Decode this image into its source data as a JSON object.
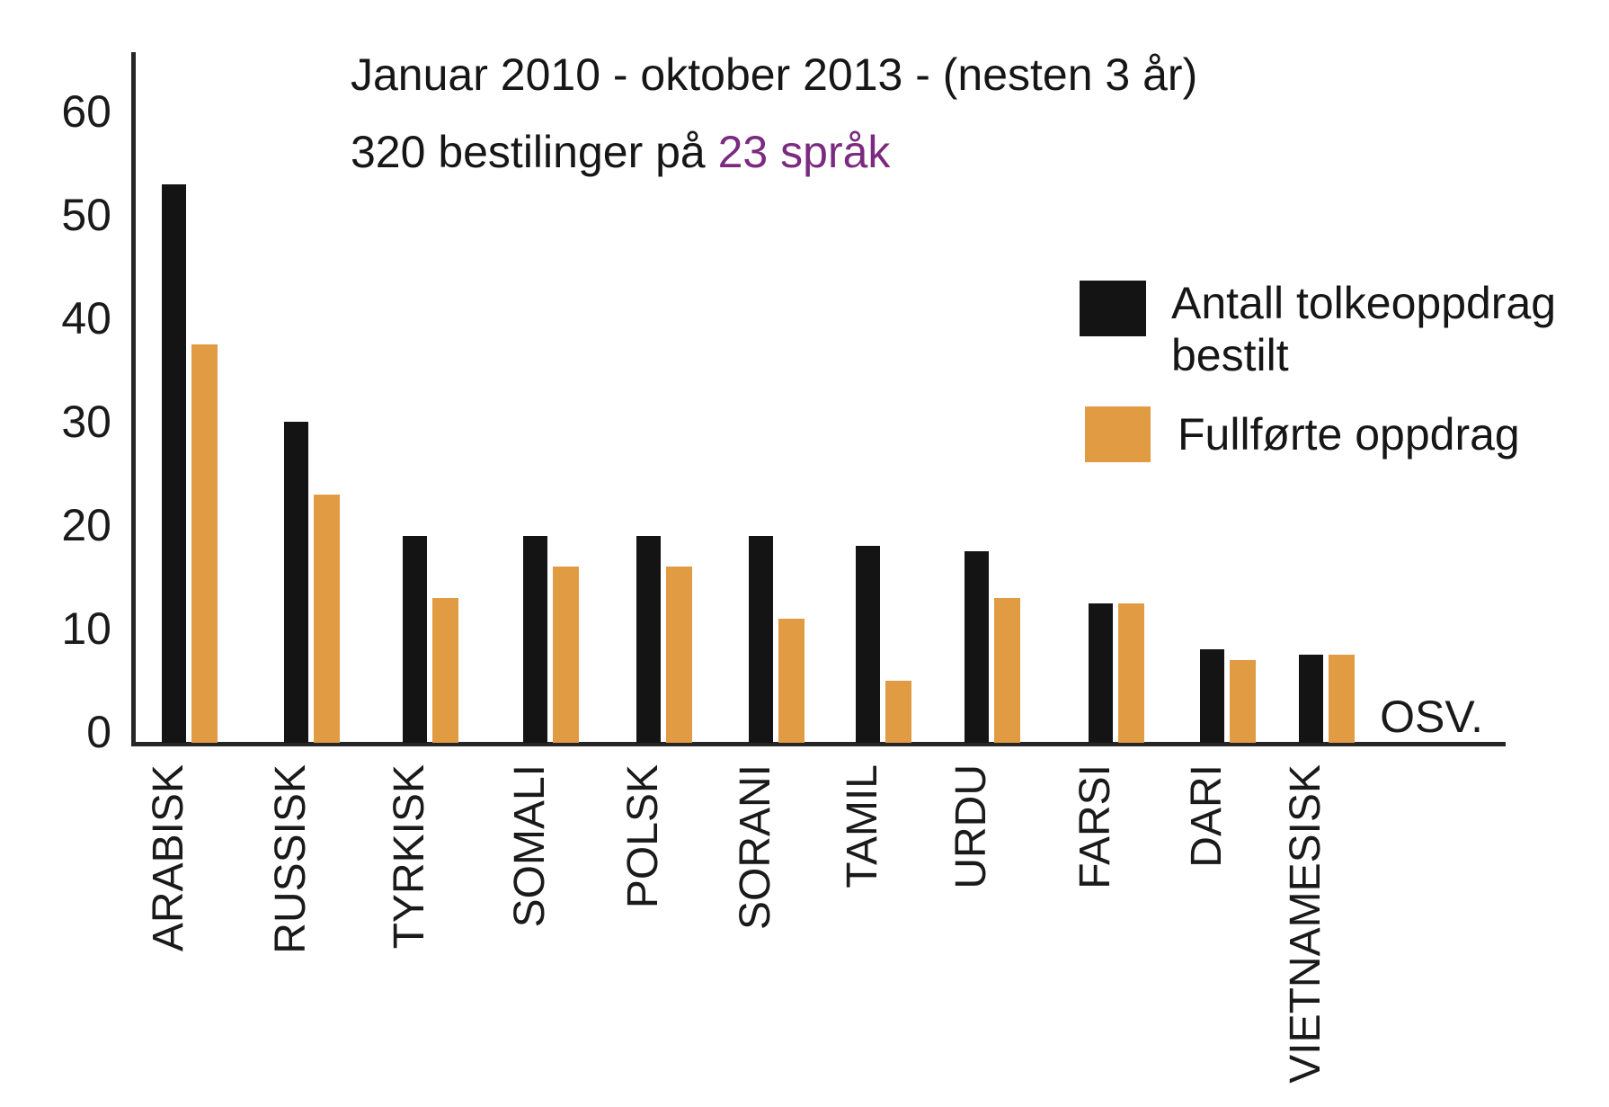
{
  "chart_data": {
    "type": "bar",
    "title_line1": "Januar 2010 - oktober 2013 - (nesten 3 år)",
    "title_line2_prefix": "320 bestilinger på ",
    "title_line2_highlight": "23 språk",
    "categories": [
      "ARABISK",
      "RUSSISK",
      "TYRKISK",
      "SOMALI",
      "POLSK",
      "SORANI",
      "TAMIL",
      "URDU",
      "FARSI",
      "DARI",
      "VIETNAMESISK"
    ],
    "series": [
      {
        "name": "Antall tolkeoppdrag bestilt",
        "color": "#141414",
        "values": [
          54,
          31,
          20,
          20,
          20,
          20,
          19,
          18.5,
          13.5,
          9,
          8.5
        ]
      },
      {
        "name": "Fullførte oppdrag",
        "color": "#e09b43",
        "values": [
          38.5,
          24,
          14,
          17,
          17,
          12,
          6,
          14,
          13.5,
          8,
          8.5
        ]
      }
    ],
    "y_ticks": [
      60,
      50,
      40,
      30,
      20,
      10,
      0
    ],
    "ylim": [
      0,
      65
    ],
    "xlabel": "",
    "ylabel": "",
    "grid": false,
    "legend_position": "right",
    "osv_label": "OSV.",
    "colors": {
      "bestilt": "#141414",
      "fullfort": "#e09b43",
      "highlight": "#7b2a80",
      "axis": "#262626"
    }
  }
}
